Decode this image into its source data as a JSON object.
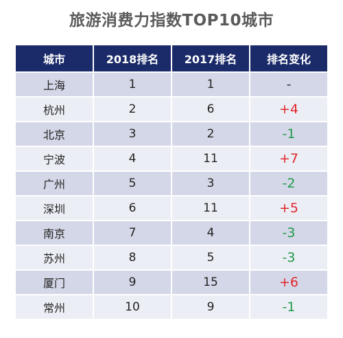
{
  "title": "旅游消费力指数TOP10城市",
  "colors": {
    "header_bg": "#1b2b69",
    "row_odd": "#d4d7e7",
    "row_even": "#eceef5",
    "increase": "#e0262a",
    "decrease": "#1f9a4b"
  },
  "chart_data": {
    "type": "table",
    "title": "旅游消费力指数TOP10城市",
    "columns": [
      "城市",
      "2018排名",
      "2017排名",
      "排名变化"
    ],
    "rows": [
      [
        "上海",
        "1",
        "1",
        "-"
      ],
      [
        "杭州",
        "2",
        "6",
        "+4"
      ],
      [
        "北京",
        "3",
        "2",
        "-1"
      ],
      [
        "宁波",
        "4",
        "11",
        "+7"
      ],
      [
        "广州",
        "5",
        "3",
        "-2"
      ],
      [
        "深圳",
        "6",
        "11",
        "+5"
      ],
      [
        "南京",
        "7",
        "4",
        "-3"
      ],
      [
        "苏州",
        "8",
        "5",
        "-3"
      ],
      [
        "厦门",
        "9",
        "15",
        "+6"
      ],
      [
        "常州",
        "10",
        "9",
        "-1"
      ]
    ]
  }
}
